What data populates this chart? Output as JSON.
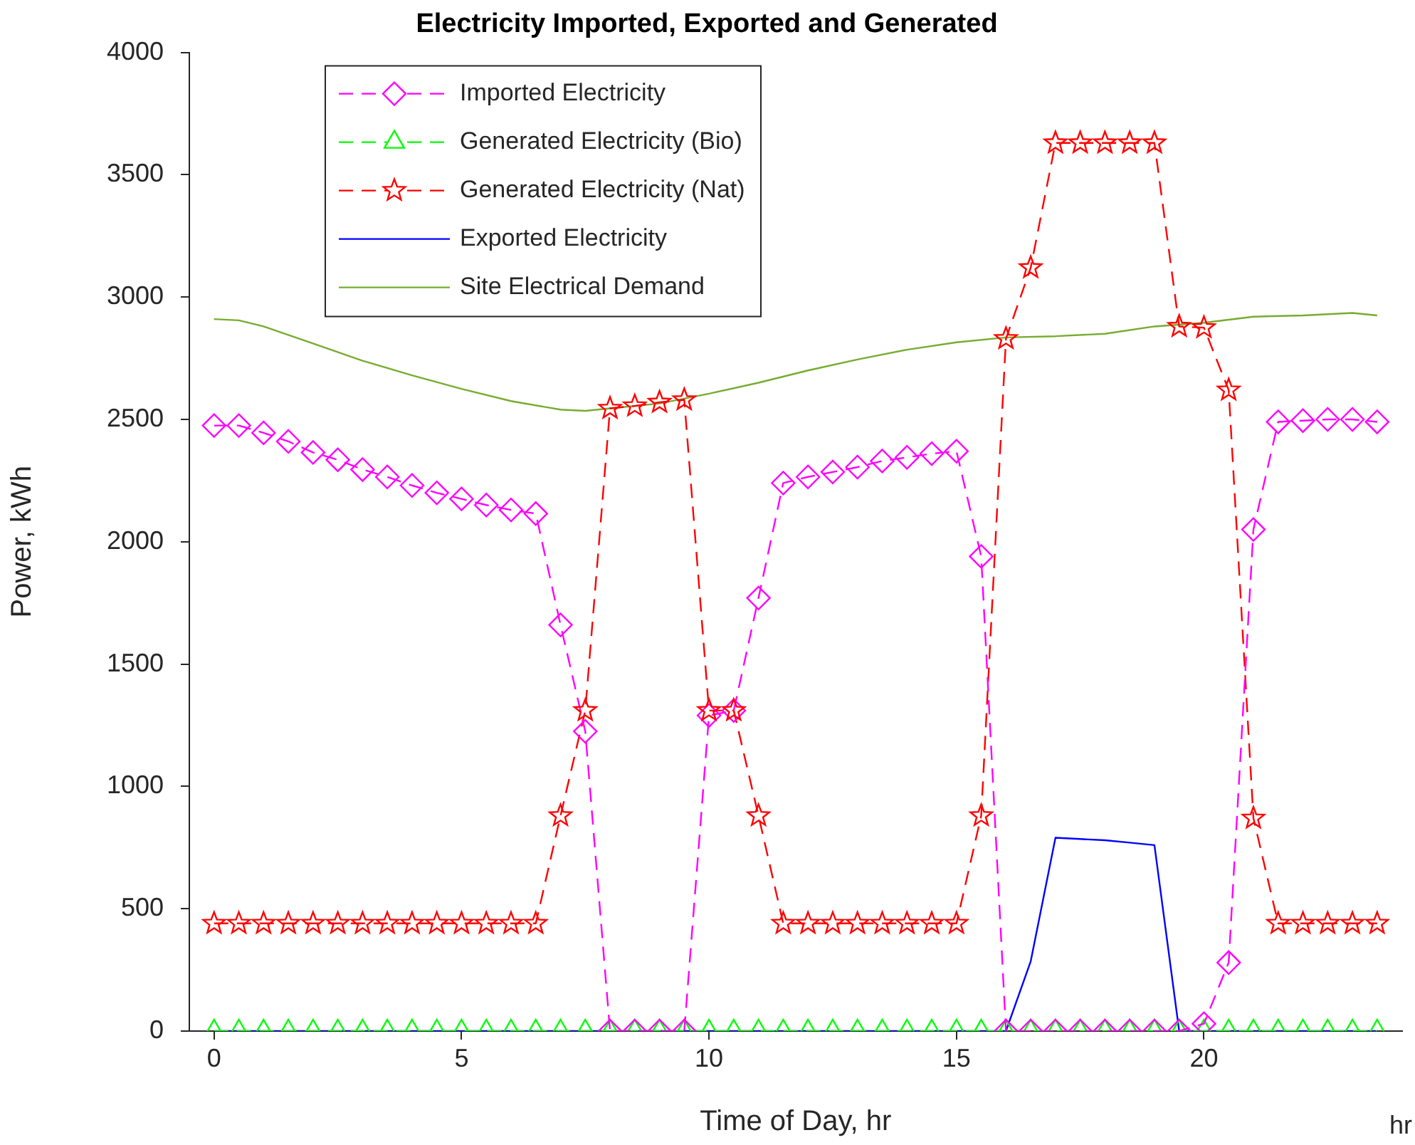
{
  "chart_data": {
    "type": "line",
    "title": "Electricity Imported, Exported and Generated",
    "xlabel": "Time of Day, hr",
    "ylabel": "Power, kWh",
    "annotations": [
      "hr"
    ],
    "x": [
      0,
      0.5,
      1,
      1.5,
      2,
      2.5,
      3,
      3.5,
      4,
      4.5,
      5,
      5.5,
      6,
      6.5,
      7,
      7.5,
      8,
      8.5,
      9,
      9.5,
      10,
      10.5,
      11,
      11.5,
      12,
      12.5,
      13,
      13.5,
      14,
      14.5,
      15,
      15.5,
      16,
      16.5,
      17,
      17.5,
      18,
      18.5,
      19,
      19.5,
      20,
      20.5,
      21,
      21.5,
      22,
      22.5,
      23,
      23.5
    ],
    "series": [
      {
        "name": "Imported Electricity",
        "color": "#ff00ff",
        "marker": "diamond",
        "line_style": "dashed",
        "values": [
          2475,
          2475,
          2445,
          2410,
          2365,
          2335,
          2295,
          2265,
          2230,
          2200,
          2175,
          2150,
          2130,
          2115,
          1660,
          1225,
          0,
          0,
          0,
          0,
          1290,
          1310,
          1770,
          2240,
          2265,
          2285,
          2305,
          2330,
          2345,
          2360,
          2370,
          1940,
          0,
          0,
          0,
          0,
          0,
          0,
          0,
          0,
          30,
          280,
          2050,
          2490,
          2495,
          2500,
          2500,
          2490
        ]
      },
      {
        "name": "Generated Electricity (Bio)",
        "color": "#00ff00",
        "marker": "triangle",
        "line_style": "dashed",
        "values": [
          0,
          0,
          0,
          0,
          0,
          0,
          0,
          0,
          0,
          0,
          0,
          0,
          0,
          0,
          0,
          0,
          0,
          0,
          0,
          0,
          0,
          0,
          0,
          0,
          0,
          0,
          0,
          0,
          0,
          0,
          0,
          0,
          0,
          0,
          0,
          0,
          0,
          0,
          0,
          0,
          0,
          0,
          0,
          0,
          0,
          0,
          0,
          0
        ]
      },
      {
        "name": "Generated Electricity (Nat)",
        "color": "#ff0000",
        "marker": "star",
        "line_style": "dashed",
        "values": [
          440,
          440,
          440,
          440,
          440,
          440,
          440,
          440,
          440,
          440,
          440,
          440,
          440,
          440,
          880,
          1310,
          2545,
          2555,
          2570,
          2580,
          1310,
          1310,
          880,
          440,
          440,
          440,
          440,
          440,
          440,
          440,
          440,
          880,
          2830,
          3120,
          3630,
          3630,
          3630,
          3630,
          3630,
          2880,
          2875,
          2620,
          870,
          440,
          440,
          440,
          440,
          440
        ]
      },
      {
        "name": "Exported Electricity",
        "color": "#0000ff",
        "marker": "none",
        "line_style": "solid",
        "values": [
          0,
          0,
          0,
          0,
          0,
          0,
          0,
          0,
          0,
          0,
          0,
          0,
          0,
          0,
          0,
          0,
          0,
          0,
          0,
          0,
          0,
          0,
          0,
          0,
          0,
          0,
          0,
          0,
          0,
          0,
          0,
          0,
          0,
          285,
          790,
          785,
          780,
          770,
          760,
          0,
          0,
          0,
          0,
          0,
          0,
          0,
          0,
          0
        ]
      },
      {
        "name": "Site Electrical Demand",
        "color": "#77ac30",
        "marker": "none",
        "line_style": "solid",
        "x": [
          0,
          0.5,
          1,
          2,
          3,
          4,
          5,
          6,
          7,
          7.5,
          8,
          9,
          10,
          11,
          12,
          13,
          14,
          15,
          16,
          17,
          18,
          19,
          20,
          21,
          22,
          23,
          23.5
        ],
        "values": [
          2910,
          2905,
          2880,
          2810,
          2740,
          2680,
          2625,
          2575,
          2540,
          2535,
          2545,
          2565,
          2605,
          2650,
          2700,
          2745,
          2785,
          2815,
          2835,
          2840,
          2850,
          2880,
          2895,
          2920,
          2925,
          2935,
          2925
        ]
      }
    ],
    "xlim": [
      -0.5,
      24
    ],
    "xticks": [
      0,
      5,
      10,
      15,
      20
    ],
    "ylim": [
      0,
      4000
    ],
    "yticks": [
      0,
      500,
      1000,
      1500,
      2000,
      2500,
      3000,
      3500,
      4000
    ],
    "grid": false,
    "legend": "top left"
  }
}
